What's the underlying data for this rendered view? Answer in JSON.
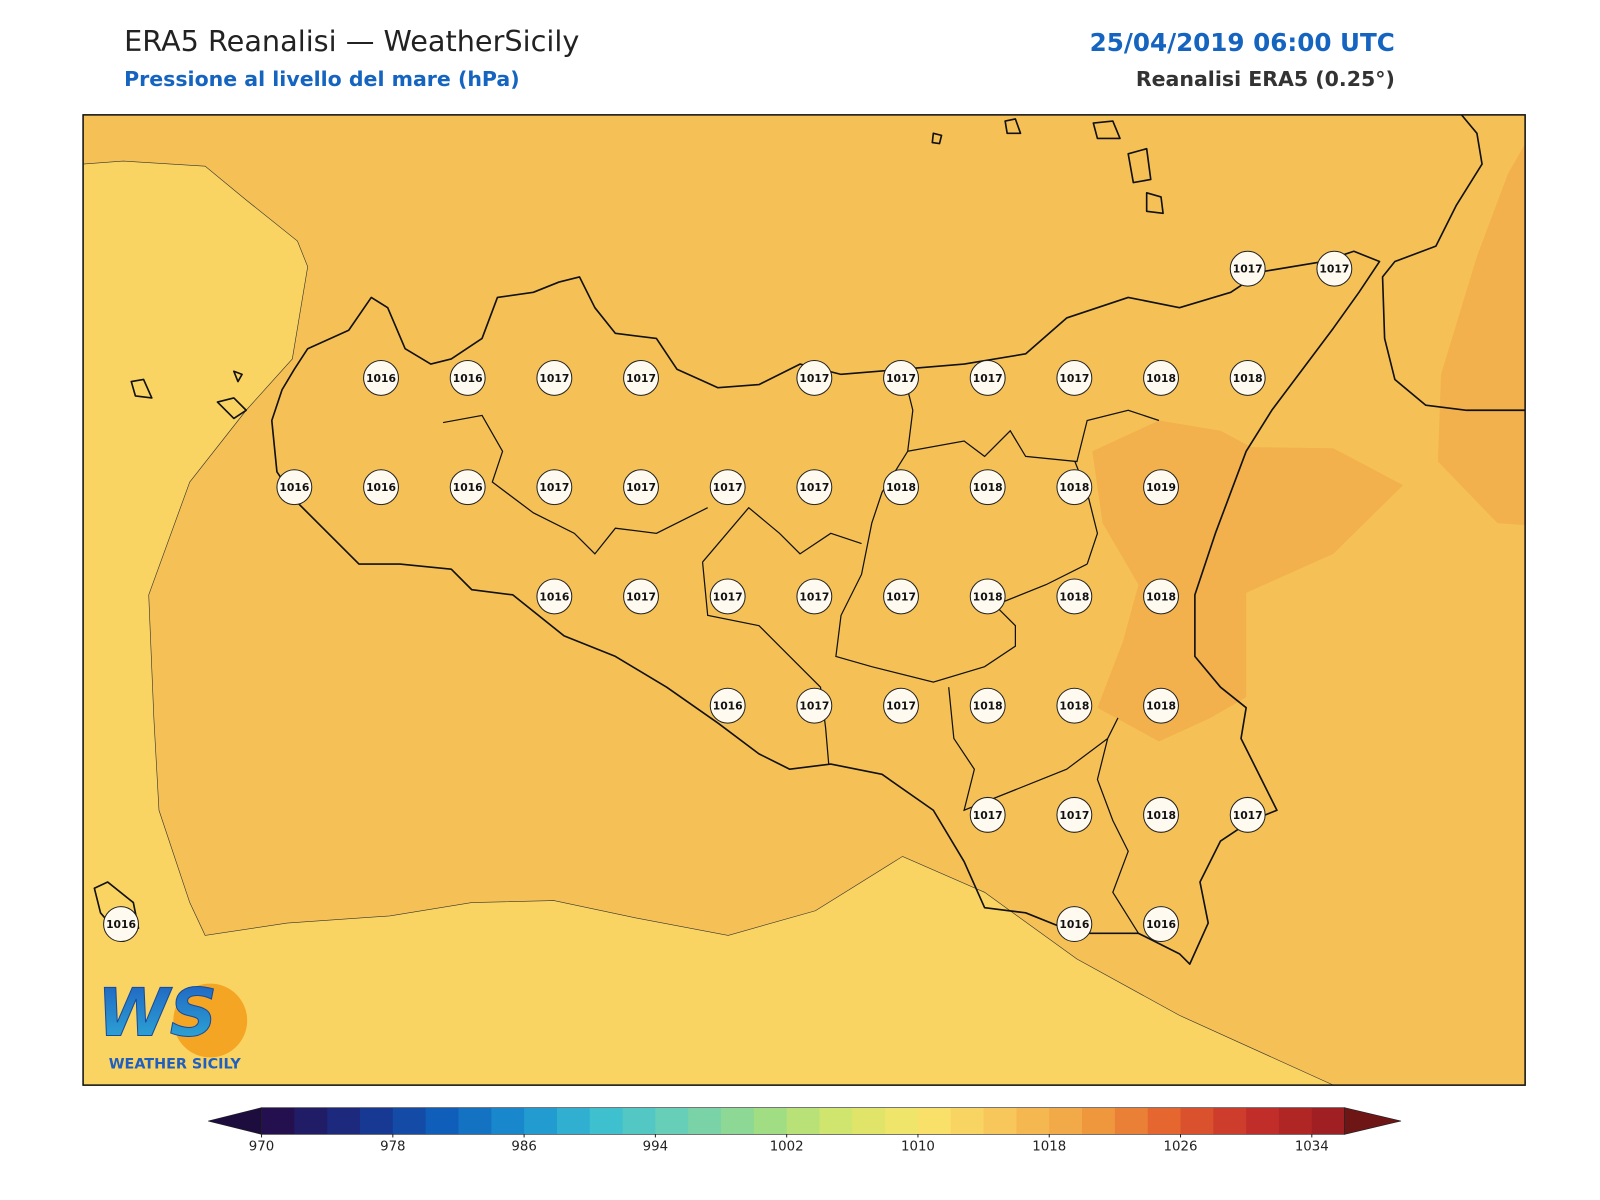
{
  "header": {
    "title": "ERA5 Reanalisi — WeatherSicily",
    "subtitle": "Pressione al livello del mare (hPa)",
    "date": "25/04/2019 06:00 UTC",
    "source": "Reanalisi ERA5 (0.25°)"
  },
  "stations": [
    "1017",
    "1017",
    "1016",
    "1016",
    "1017",
    "1017",
    "1017",
    "1017",
    "1017",
    "1017",
    "1018",
    "1018",
    "1016",
    "1016",
    "1016",
    "1017",
    "1017",
    "1017",
    "1017",
    "1018",
    "1018",
    "1018",
    "1019",
    "1016",
    "1017",
    "1017",
    "1017",
    "1017",
    "1018",
    "1018",
    "1018",
    "1016",
    "1017",
    "1017",
    "1018",
    "1018",
    "1018",
    "1017",
    "1017",
    "1018",
    "1017",
    "1016",
    "1016",
    "1016"
  ],
  "colorbar": {
    "ticks": [
      970,
      978,
      986,
      994,
      1002,
      1010,
      1018,
      1026,
      1034
    ]
  },
  "logo": {
    "mark": "WS",
    "name": "WEATHER SICILY"
  }
}
